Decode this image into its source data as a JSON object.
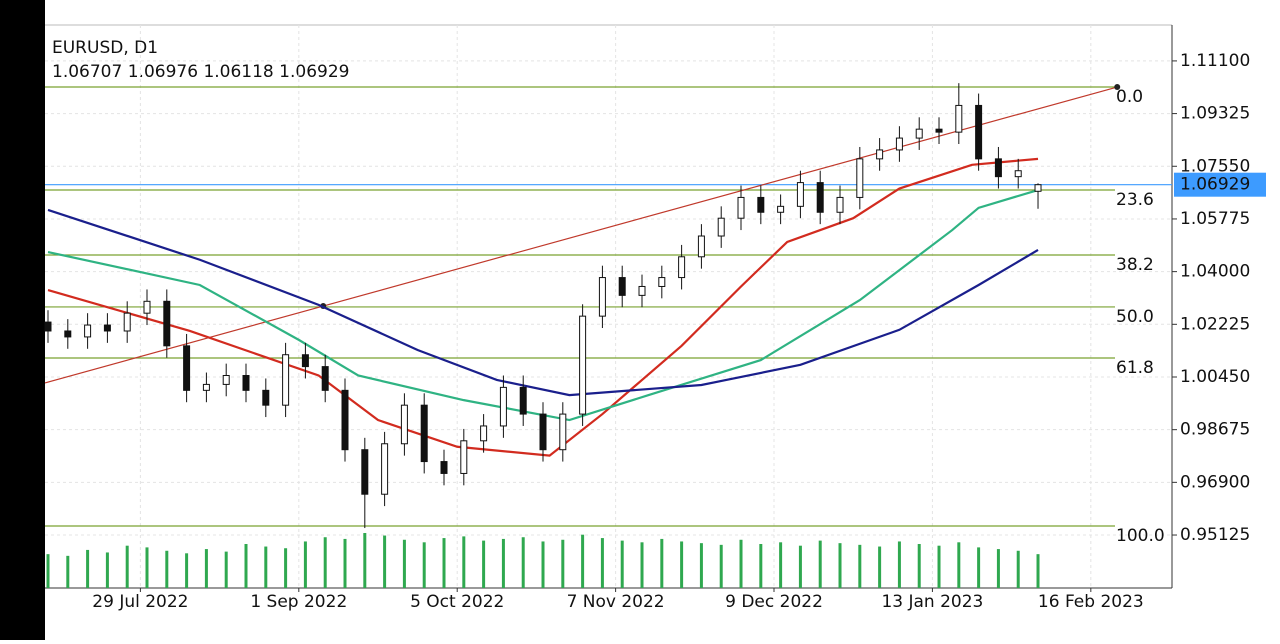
{
  "chart_data": {
    "type": "candlestick",
    "title": "EURUSD, D1",
    "x": [
      0,
      3,
      6,
      9,
      12,
      15,
      18,
      21,
      24,
      27,
      30,
      33,
      36,
      39,
      42,
      45,
      48,
      51,
      54,
      57,
      60,
      63,
      66,
      69,
      72,
      75,
      78,
      81,
      84,
      87,
      90,
      93,
      96,
      99,
      102,
      105,
      108,
      111,
      114,
      117,
      120,
      123,
      126,
      129,
      132,
      135,
      138,
      141,
      144,
      147,
      150
    ],
    "open": [
      1.023,
      1.02,
      1.018,
      1.022,
      1.02,
      1.026,
      1.03,
      1.015,
      1.0,
      1.002,
      1.005,
      1.0,
      0.995,
      1.012,
      1.008,
      1.0,
      0.98,
      0.965,
      0.982,
      0.995,
      0.976,
      0.972,
      0.983,
      0.988,
      1.001,
      0.992,
      0.98,
      0.992,
      1.025,
      1.038,
      1.032,
      1.035,
      1.038,
      1.045,
      1.052,
      1.058,
      1.065,
      1.06,
      1.062,
      1.07,
      1.06,
      1.065,
      1.078,
      1.081,
      1.085,
      1.088,
      1.087,
      1.096,
      1.078,
      1.072,
      1.06707
    ],
    "high": [
      1.027,
      1.024,
      1.026,
      1.026,
      1.03,
      1.034,
      1.034,
      1.019,
      1.006,
      1.009,
      1.009,
      1.004,
      1.016,
      1.016,
      1.012,
      1.004,
      0.984,
      0.986,
      0.999,
      0.999,
      0.98,
      0.987,
      0.992,
      1.005,
      1.005,
      0.996,
      0.996,
      1.029,
      1.042,
      1.042,
      1.039,
      1.042,
      1.049,
      1.056,
      1.062,
      1.069,
      1.069,
      1.066,
      1.074,
      1.074,
      1.069,
      1.082,
      1.085,
      1.089,
      1.092,
      1.092,
      1.1035,
      1.1,
      1.082,
      1.078,
      1.06976
    ],
    "low": [
      1.016,
      1.014,
      1.014,
      1.016,
      1.016,
      1.022,
      1.011,
      0.996,
      0.996,
      0.998,
      0.996,
      0.991,
      0.991,
      1.004,
      0.996,
      0.976,
      0.9536,
      0.961,
      0.978,
      0.972,
      0.968,
      0.968,
      0.979,
      0.984,
      0.988,
      0.976,
      0.976,
      0.988,
      1.021,
      1.028,
      1.028,
      1.031,
      1.034,
      1.041,
      1.048,
      1.054,
      1.056,
      1.056,
      1.058,
      1.056,
      1.056,
      1.061,
      1.074,
      1.077,
      1.081,
      1.083,
      1.083,
      1.074,
      1.068,
      1.068,
      1.06118
    ],
    "close": [
      1.02,
      1.018,
      1.022,
      1.02,
      1.026,
      1.03,
      1.015,
      1.0,
      1.002,
      1.005,
      1.0,
      0.995,
      1.012,
      1.008,
      1.0,
      0.98,
      0.965,
      0.982,
      0.995,
      0.976,
      0.972,
      0.983,
      0.988,
      1.001,
      0.992,
      0.98,
      0.992,
      1.025,
      1.038,
      1.032,
      1.035,
      1.038,
      1.045,
      1.052,
      1.058,
      1.065,
      1.06,
      1.062,
      1.07,
      1.06,
      1.065,
      1.078,
      1.081,
      1.085,
      1.088,
      1.087,
      1.096,
      1.078,
      1.072,
      1.074,
      1.06929
    ],
    "volumes": [
      40,
      38,
      45,
      42,
      50,
      48,
      44,
      41,
      46,
      43,
      52,
      49,
      47,
      55,
      60,
      58,
      65,
      62,
      57,
      54,
      59,
      61,
      56,
      58,
      60,
      55,
      57,
      63,
      59,
      56,
      54,
      58,
      55,
      53,
      51,
      57,
      52,
      54,
      50,
      56,
      53,
      51,
      49,
      55,
      52,
      50,
      54,
      48,
      46,
      44,
      40
    ],
    "ylim": [
      0.9334,
      1.1231
    ],
    "xlim": [
      -0.4545,
      170.3
    ],
    "yticks": [
      {
        "value": 1.111,
        "label": "1.11100"
      },
      {
        "value": 1.09325,
        "label": "1.09325"
      },
      {
        "value": 1.0755,
        "label": "1.07550"
      },
      {
        "value": 1.05775,
        "label": "1.05775"
      },
      {
        "value": 1.04,
        "label": "1.04000"
      },
      {
        "value": 1.02225,
        "label": "1.02225"
      },
      {
        "value": 1.0045,
        "label": "1.00450"
      },
      {
        "value": 0.98675,
        "label": "0.98675"
      },
      {
        "value": 0.969,
        "label": "0.96900"
      },
      {
        "value": 0.95125,
        "label": "0.95125"
      }
    ],
    "xticks": [
      {
        "value": 14,
        "label": "29 Jul 2022"
      },
      {
        "value": 38,
        "label": "1 Sep 2022"
      },
      {
        "value": 62,
        "label": "5 Oct 2022"
      },
      {
        "value": 86,
        "label": "7 Nov 2022"
      },
      {
        "value": 110,
        "label": "9 Dec 2022"
      },
      {
        "value": 134,
        "label": "13 Jan 2023"
      },
      {
        "value": 158,
        "label": "16 Feb 2023"
      }
    ],
    "grid": true,
    "current_price": {
      "value": 1.06929,
      "label": "1.06929",
      "color": "#3d9bff"
    },
    "moving_averages": [
      {
        "color": "#d22b1f",
        "x": [
          0,
          21.5,
          41,
          50,
          62,
          76,
          84,
          96,
          105,
          112,
          122,
          129,
          140,
          150
        ],
        "values": [
          1.0338,
          1.02,
          1.005,
          0.99,
          0.981,
          0.978,
          0.992,
          1.015,
          1.035,
          1.05,
          1.058,
          1.068,
          1.076,
          1.078
        ]
      },
      {
        "color": "#2fb383",
        "x": [
          0,
          23,
          38,
          47,
          63,
          79,
          91,
          108,
          123,
          137,
          141,
          150
        ],
        "values": [
          1.0466,
          1.0355,
          1.017,
          1.005,
          0.9967,
          0.99,
          0.9984,
          1.0102,
          1.0304,
          1.054,
          1.0615,
          1.0675
        ]
      },
      {
        "color": "#1a1f8c",
        "x": [
          0,
          23,
          41,
          56,
          68,
          79,
          99,
          114,
          129,
          141,
          150
        ],
        "values": [
          1.0608,
          1.044,
          1.0288,
          1.0136,
          1.0035,
          0.9984,
          1.0018,
          1.0086,
          1.0204,
          1.0355,
          1.0473
        ]
      }
    ],
    "trendline": {
      "color": "#c0392b",
      "x": [
        -0.4545,
        41.7,
        162
      ],
      "values": [
        1.0025,
        1.0284,
        1.1022
      ]
    },
    "fibonacci": {
      "color": "#7aa230",
      "levels": [
        {
          "label": "0.0",
          "value": 1.1022
        },
        {
          "label": "23.6",
          "value": 1.0675
        },
        {
          "label": "38.2",
          "value": 1.0456
        },
        {
          "label": "50.0",
          "value": 1.0281
        },
        {
          "label": "61.8",
          "value": 1.0109
        },
        {
          "label": "100.0",
          "value": 0.9543
        }
      ]
    },
    "volume_color": "#2fa84f"
  }
}
